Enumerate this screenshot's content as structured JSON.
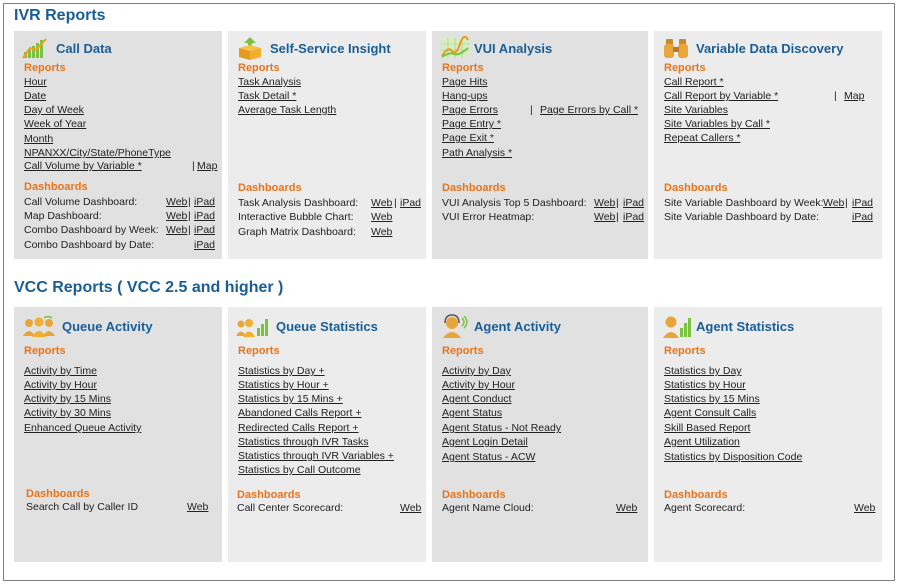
{
  "ivr": {
    "title": "IVR Reports",
    "panels": [
      {
        "title": "Call Data",
        "reports_label": "Reports",
        "reports": [
          "Hour",
          "Date",
          "Day of Week",
          "Week of Year",
          "Month",
          "NPANXX/City/State/PhoneType",
          "Call Volume by Variable *"
        ],
        "extra_map": "Map",
        "dash_label": "Dashboards",
        "dashboards": [
          {
            "name": "Call Volume Dashboard:",
            "web": "Web",
            "ipad": "iPad"
          },
          {
            "name": "Map Dashboard:",
            "web": "Web",
            "ipad": "iPad"
          },
          {
            "name": "Combo Dashboard by Week:",
            "web": "Web",
            "ipad": "iPad"
          },
          {
            "name": "Combo Dashboard by Date:",
            "web": "",
            "ipad": "iPad"
          }
        ]
      },
      {
        "title": "Self-Service Insight",
        "reports_label": "Reports",
        "reports": [
          "Task Analysis",
          "Task Detail *",
          "Average Task Length"
        ],
        "dash_label": "Dashboards",
        "dashboards": [
          {
            "name": "Task Analysis Dashboard:",
            "web": "Web",
            "ipad": "iPad"
          },
          {
            "name": "Interactive Bubble Chart:",
            "web": "Web",
            "ipad": ""
          },
          {
            "name": "Graph Matrix Dashboard:",
            "web": "Web",
            "ipad": ""
          }
        ]
      },
      {
        "title": "VUI Analysis",
        "reports_label": "Reports",
        "reports": [
          "Page Hits",
          "Hang-ups",
          "Page Errors",
          "Page Entry *",
          "Page Exit *",
          "Path Analysis *"
        ],
        "extra_errors": "Page Errors by Call *",
        "dash_label": "Dashboards",
        "dashboards": [
          {
            "name": "VUI Analysis Top 5 Dashboard:",
            "web": "Web",
            "ipad": "iPad"
          },
          {
            "name": "VUI Error Heatmap:",
            "web": "Web",
            "ipad": "iPad"
          }
        ]
      },
      {
        "title": "Variable Data Discovery",
        "reports_label": "Reports",
        "reports": [
          "Call Report *",
          "Call Report by Variable *",
          "Site Variables",
          "Site Variables by Call *",
          "Repeat Callers *"
        ],
        "extra_map": "Map",
        "dash_label": "Dashboards",
        "dashboards": [
          {
            "name": "Site Variable Dashboard by Week:",
            "web": "Web",
            "ipad": "iPad"
          },
          {
            "name": "Site Variable Dashboard by Date:",
            "web": "",
            "ipad": "iPad"
          }
        ]
      }
    ]
  },
  "vcc": {
    "title": "VCC Reports ( VCC 2.5 and higher )",
    "panels": [
      {
        "title": "Queue Activity",
        "reports_label": "Reports",
        "reports": [
          "Activity by Time",
          "Activity by Hour",
          "Activity by 15 Mins",
          "Activity by 30 Mins",
          "Enhanced Queue Activity"
        ],
        "dash_label": "Dashboards",
        "dashboards": [
          {
            "name": "Search Call by Caller ID",
            "web": "Web"
          }
        ]
      },
      {
        "title": "Queue Statistics",
        "reports_label": "Reports",
        "reports": [
          "Statistics by Day +",
          "Statistics by Hour +",
          "Statistics by 15 Mins +",
          "Abandoned Calls Report +",
          "Redirected Calls Report +",
          "Statistics through IVR Tasks",
          "Statistics through IVR Variables +",
          "Statistics by Call Outcome"
        ],
        "dash_label": "Dashboards",
        "dashboards": [
          {
            "name": "Call Center Scorecard:",
            "web": "Web"
          }
        ]
      },
      {
        "title": "Agent Activity",
        "reports_label": "Reports",
        "reports": [
          "Activity by Day",
          "Activity by Hour",
          "Agent Conduct",
          "Agent Status",
          "Agent Status - Not Ready",
          "Agent Login Detail",
          "Agent Status - ACW"
        ],
        "dash_label": "Dashboards",
        "dashboards": [
          {
            "name": "Agent Name Cloud:",
            "web": "Web"
          }
        ]
      },
      {
        "title": "Agent Statistics",
        "reports_label": "Reports",
        "reports": [
          "Statistics by Day",
          "Statistics by Hour",
          "Statistics by 15 Mins",
          "Agent Consult Calls",
          "Skill Based Report",
          "Agent Utilization",
          "Statistics by Disposition Code"
        ],
        "dash_label": "Dashboards",
        "dashboards": [
          {
            "name": "Agent Scorecard:",
            "web": "Web"
          }
        ]
      }
    ]
  },
  "colors": {
    "title": "#1a5e96",
    "subhead": "#e8741b",
    "panel_dark": "#e1e1e1",
    "panel_light": "#ececec"
  },
  "icons": [
    "bar-chart-icon",
    "box-arrow-icon",
    "wave-chart-icon",
    "binoculars-icon",
    "people-icon",
    "people-bars-icon",
    "agent-headset-icon",
    "agent-bars-icon"
  ]
}
